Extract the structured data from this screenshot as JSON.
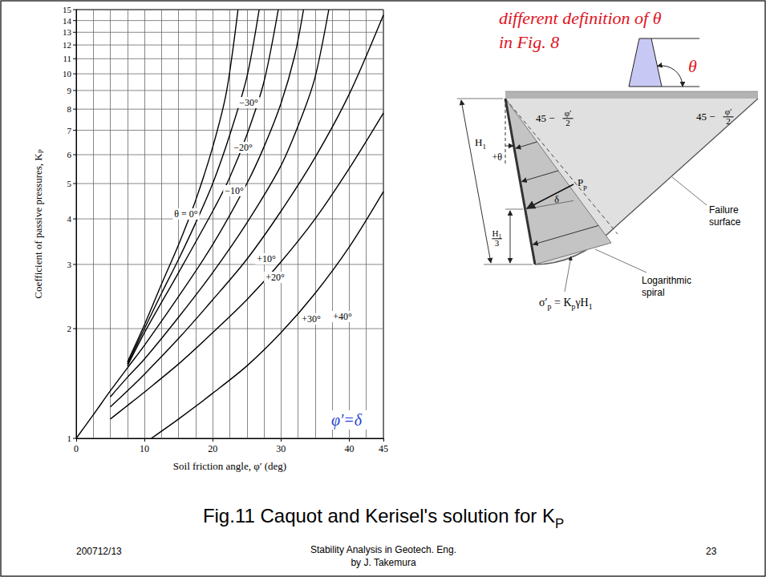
{
  "chart_data": {
    "type": "line",
    "x_label": "Soil friction angle, φ′ (deg)",
    "y_label": [
      "Coefficient of passive pressures, K",
      {
        "sub": "P"
      }
    ],
    "xlim": [
      0,
      45
    ],
    "xticks": [
      0,
      10,
      20,
      30,
      40,
      45
    ],
    "ylim": [
      1,
      15
    ],
    "yticks": [
      1,
      2,
      3,
      4,
      5,
      6,
      7,
      8,
      9,
      10,
      11,
      12,
      13,
      14,
      15
    ],
    "log": "y",
    "grid": true,
    "line_style": "solid",
    "series": [
      {
        "name": "−30°",
        "color": "#000000",
        "x": [
          7.5,
          10,
          12.5,
          15,
          17.5,
          20,
          22,
          23.7
        ],
        "values": [
          1.62,
          2.05,
          2.65,
          3.4,
          4.5,
          6.3,
          8.9,
          15
        ]
      },
      {
        "name": "−20°",
        "color": "#000000",
        "x": [
          7.5,
          10,
          12.5,
          15,
          17.5,
          20,
          22.5,
          25,
          26.8
        ],
        "values": [
          1.6,
          2.0,
          2.5,
          3.1,
          3.9,
          5.0,
          6.8,
          9.8,
          15
        ]
      },
      {
        "name": "−10°",
        "color": "#000000",
        "x": [
          7.5,
          10,
          15,
          20,
          22.5,
          25,
          27.5,
          29.6
        ],
        "values": [
          1.58,
          1.95,
          2.85,
          4.2,
          5.2,
          6.8,
          9.5,
          15
        ]
      },
      {
        "name": "θ = 0°",
        "color": "#000000",
        "x": [
          0,
          2.5,
          5,
          7.5,
          10,
          15,
          20,
          25,
          27.5,
          30,
          32,
          33.3
        ],
        "values": [
          1,
          1.16,
          1.35,
          1.56,
          1.8,
          2.45,
          3.4,
          5.0,
          6.3,
          8.3,
          11.2,
          15
        ]
      },
      {
        "name": "+10°",
        "color": "#000000",
        "x": [
          5,
          7.5,
          10,
          15,
          20,
          25,
          30,
          33,
          35,
          37
        ],
        "values": [
          1.3,
          1.47,
          1.65,
          2.15,
          2.85,
          3.9,
          5.6,
          7.6,
          9.8,
          15
        ]
      },
      {
        "name": "+20°",
        "color": "#000000",
        "x": [
          5,
          7.5,
          10,
          15,
          20,
          25,
          30,
          35,
          40,
          45
        ],
        "values": [
          1.22,
          1.35,
          1.5,
          1.88,
          2.4,
          3.1,
          4.2,
          5.9,
          8.8,
          14.5
        ]
      },
      {
        "name": "+30°",
        "color": "#000000",
        "x": [
          5,
          7.5,
          10,
          15,
          20,
          25,
          30,
          35,
          40,
          45
        ],
        "values": [
          1.13,
          1.23,
          1.34,
          1.6,
          1.95,
          2.4,
          3.05,
          4.0,
          5.5,
          7.8
        ]
      },
      {
        "name": "+40°",
        "color": "#000000",
        "x": [
          11,
          15,
          20,
          25,
          30,
          35,
          40,
          45
        ],
        "values": [
          1.0,
          1.13,
          1.33,
          1.58,
          1.95,
          2.5,
          3.35,
          4.75
        ]
      }
    ],
    "annotations": [
      {
        "text": "φ′=δ",
        "color": "#1f3fd1"
      }
    ]
  },
  "diagram": {
    "note": [
      "different definition of θ",
      "in Fig. 8"
    ],
    "note_color": "#e0141e",
    "icon_angle": "θ",
    "wall_angle": "+θ",
    "height": [
      "H",
      {
        "sub": "1"
      }
    ],
    "force": [
      "P",
      {
        "sub": "p"
      }
    ],
    "friction": "δ",
    "force_height": [
      {
        "frac": [
          [
            "H",
            {
              "sub": "1"
            }
          ],
          [
            "3"
          ]
        ]
      }
    ],
    "angle_left": [
      "45 − ",
      {
        "frac": [
          [
            "φ′"
          ],
          [
            "2"
          ]
        ]
      }
    ],
    "angle_right": [
      "45 − ",
      {
        "frac": [
          [
            "φ′"
          ],
          [
            "2"
          ]
        ]
      }
    ],
    "failure_label": [
      "Failure",
      "surface"
    ],
    "spiral_label": [
      "Logarithmic",
      "spiral"
    ],
    "pressure": [
      "σ′",
      {
        "sub": "p"
      },
      " = K",
      {
        "sub": "p"
      },
      "γH",
      {
        "sub": "1"
      }
    ]
  },
  "caption": [
    "Fig.11 Caquot and Kerisel's solution for K",
    {
      "sub": "P"
    }
  ],
  "footer": {
    "date": "200712/13",
    "title": "Stability Analysis in Geotech. Eng.",
    "author": "by J. Takemura",
    "page": "23"
  }
}
